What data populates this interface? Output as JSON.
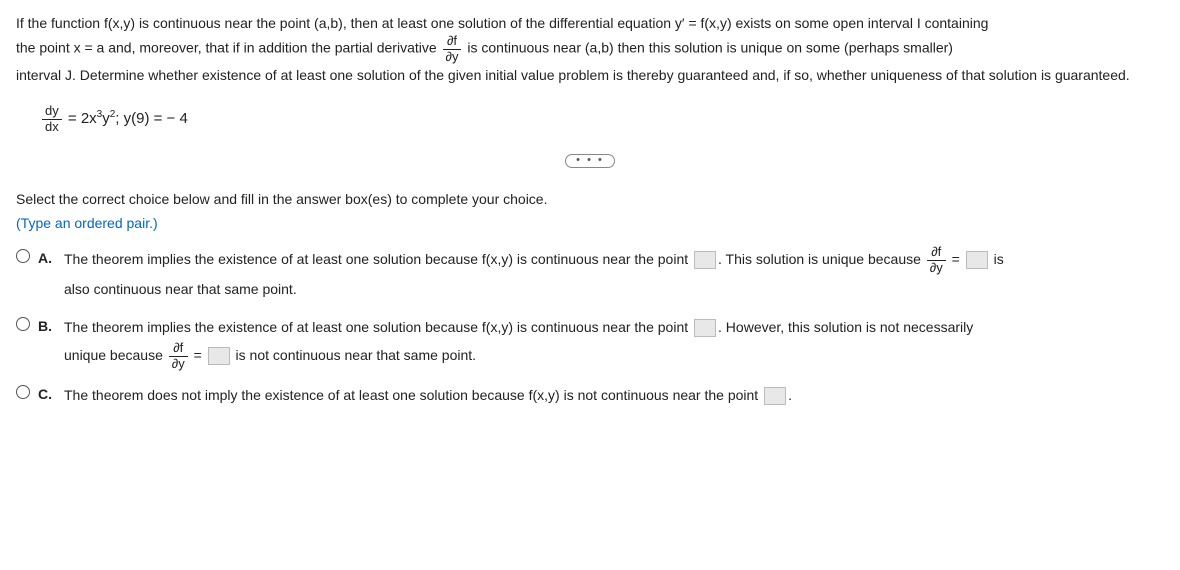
{
  "problem": {
    "line1_a": "If the function f(x,y) is continuous near the point (a,b), then at least one solution of the differential equation y′ = f(x,y) exists on some open interval I containing",
    "line2_a": "the point x = a and, moreover, that if in addition the partial derivative ",
    "line2_b": " is continuous near (a,b) then this solution is unique on some (perhaps smaller)",
    "line3": "interval J. Determine whether existence of at least one solution of the given initial value problem is thereby guaranteed and, if so, whether uniqueness of that solution is guaranteed.",
    "partial_num": "∂f",
    "partial_den": "∂y"
  },
  "equation": {
    "lhs_num": "dy",
    "lhs_den": "dx",
    "rhs": " = 2x",
    "exp1": "3",
    "mid": "y",
    "exp2": "2",
    "cond": "; y(9) = − 4"
  },
  "divider": "• • •",
  "prompt": "Select the correct choice below and fill in the answer box(es) to complete your choice.",
  "hint": "(Type an ordered pair.)",
  "choices": {
    "A": {
      "label": "A.",
      "t1": "The theorem implies the existence of at least one solution because f(x,y) is continuous near the point ",
      "t2": ". This solution is unique because ",
      "t3": " = ",
      "t4": " is",
      "t5": "also continuous near that same point."
    },
    "B": {
      "label": "B.",
      "t1": "The theorem implies the existence of at least one solution because f(x,y) is continuous near the point ",
      "t2": ". However, this solution is not necessarily",
      "t3": "unique because ",
      "t4": " = ",
      "t5": " is not continuous near that same point."
    },
    "C": {
      "label": "C.",
      "t1": "The theorem does not imply the existence of at least one solution because f(x,y) is not continuous near the point ",
      "t2": "."
    }
  },
  "colors": {
    "hint": "#0066cc",
    "text": "#222222",
    "blank_bg": "#e8e8e8"
  }
}
